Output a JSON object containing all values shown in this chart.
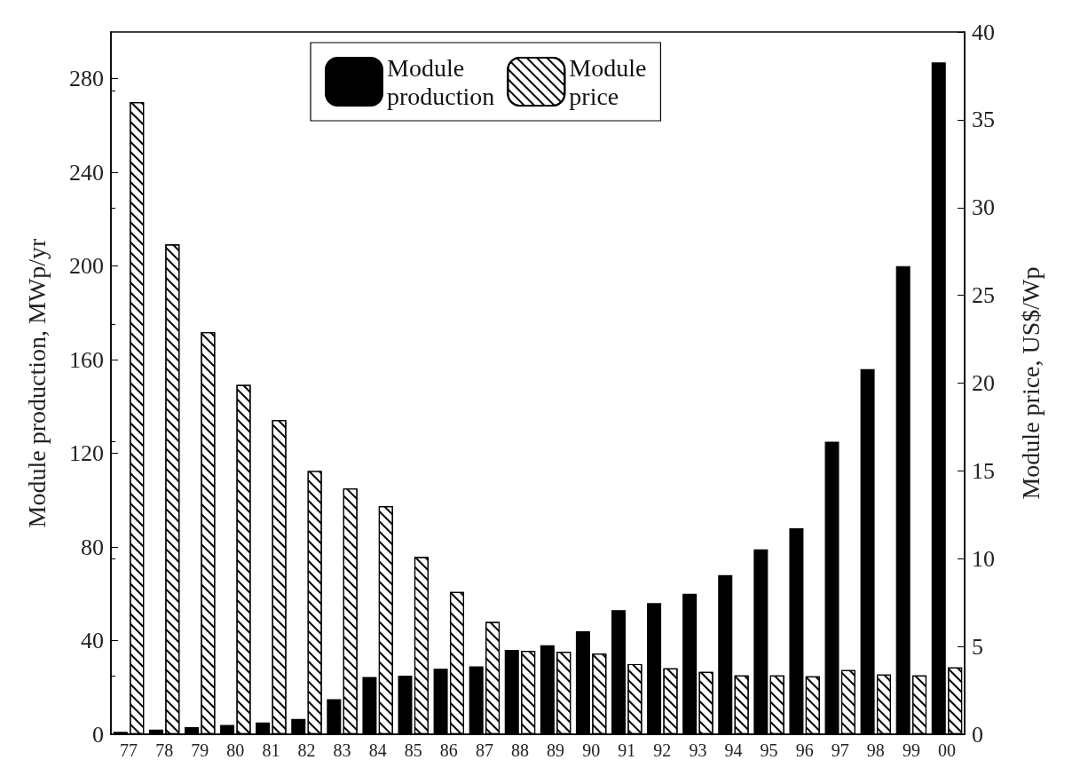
{
  "chart_data": {
    "type": "bar",
    "xlabel": null,
    "ylabel": "Module production, MWp/yr",
    "y2label": "Module price, US$/Wp",
    "categories": [
      "77",
      "78",
      "79",
      "80",
      "81",
      "82",
      "83",
      "84",
      "85",
      "86",
      "87",
      "88",
      "89",
      "90",
      "91",
      "92",
      "93",
      "94",
      "95",
      "96",
      "97",
      "98",
      "99",
      "00"
    ],
    "series": [
      {
        "name": "Module production",
        "color": "#000000",
        "values": [
          1,
          2,
          3,
          4,
          5,
          6.5,
          15,
          24.5,
          25,
          28,
          29,
          36,
          38,
          44,
          53,
          56,
          60,
          68,
          79,
          88,
          125,
          156,
          200,
          287
        ]
      },
      {
        "name": "Module price",
        "color": "#ffffff",
        "axis": "y2",
        "values": [
          36,
          27.9,
          22.9,
          19.9,
          17.9,
          15,
          14,
          13,
          10.1,
          8.1,
          6.4,
          4.75,
          4.7,
          4.6,
          4,
          3.75,
          3.55,
          3.35,
          3.35,
          3.3,
          3.65,
          3.4,
          3.35,
          3.8
        ]
      }
    ],
    "ylim": [
      0,
      300
    ],
    "yticks": [
      0,
      40,
      80,
      120,
      160,
      200,
      240,
      280
    ],
    "y2lim": [
      0,
      40
    ],
    "y2ticks": [
      0,
      5,
      10,
      15,
      20,
      25,
      30,
      35,
      40
    ],
    "grid": false,
    "legend": "top"
  }
}
